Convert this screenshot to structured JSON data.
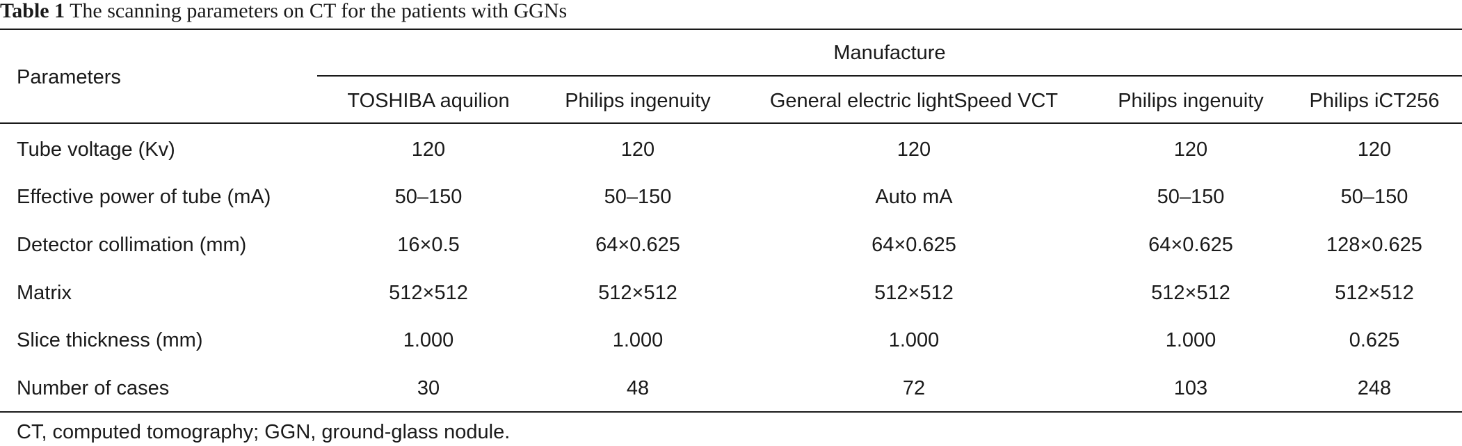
{
  "caption": {
    "label": "Table 1",
    "title": "The scanning parameters on CT for the patients with GGNs"
  },
  "header": {
    "row_label": "Parameters",
    "group_label": "Manufacture",
    "columns": [
      "TOSHIBA aquilion",
      "Philips ingenuity",
      "General electric lightSpeed VCT",
      "Philips ingenuity",
      "Philips iCT256"
    ]
  },
  "rows": [
    {
      "label": "Tube voltage (Kv)",
      "values": [
        "120",
        "120",
        "120",
        "120",
        "120"
      ]
    },
    {
      "label": "Effective power of tube (mA)",
      "values": [
        "50–150",
        "50–150",
        "Auto mA",
        "50–150",
        "50–150"
      ]
    },
    {
      "label": "Detector collimation (mm)",
      "values": [
        "16×0.5",
        "64×0.625",
        "64×0.625",
        "64×0.625",
        "128×0.625"
      ]
    },
    {
      "label": "Matrix",
      "values": [
        "512×512",
        "512×512",
        "512×512",
        "512×512",
        "512×512"
      ]
    },
    {
      "label": "Slice thickness (mm)",
      "values": [
        "1.000",
        "1.000",
        "1.000",
        "1.000",
        "0.625"
      ]
    },
    {
      "label": "Number of cases",
      "values": [
        "30",
        "48",
        "72",
        "103",
        "248"
      ]
    }
  ],
  "footnote": "CT, computed tomography; GGN, ground-glass nodule."
}
